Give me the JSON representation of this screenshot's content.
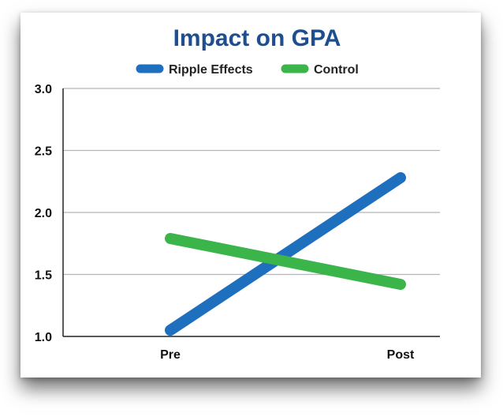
{
  "chart_data": {
    "type": "line",
    "title": "Impact on GPA",
    "xlabel": "",
    "ylabel": "",
    "categories": [
      "Pre",
      "Post"
    ],
    "ylim": [
      1.0,
      3.0
    ],
    "yticks": [
      "1.0",
      "1.5",
      "2.0",
      "2.5",
      "3.0"
    ],
    "grid": true,
    "legend": "top-center",
    "series": [
      {
        "name": "Ripple Effects",
        "color": "#1f6fbf",
        "values": [
          1.05,
          2.28
        ]
      },
      {
        "name": "Control",
        "color": "#3bb54a",
        "values": [
          1.79,
          1.42
        ]
      }
    ]
  }
}
